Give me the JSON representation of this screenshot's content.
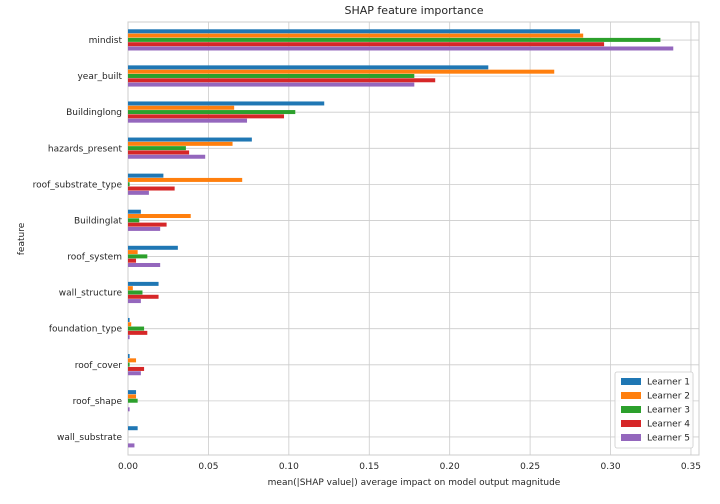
{
  "chart_data": {
    "type": "bar",
    "orientation": "horizontal",
    "title": "SHAP feature importance",
    "xlabel": "mean(|SHAP value|) average impact on model output magnitude",
    "ylabel": "feature",
    "xlim": [
      0,
      0.355
    ],
    "xticks": [
      "0.00",
      "0.05",
      "0.10",
      "0.15",
      "0.20",
      "0.25",
      "0.30",
      "0.35"
    ],
    "grid": true,
    "legend_position": "bottom-right",
    "categories": [
      "mindist",
      "year_built",
      "Buildinglong",
      "hazards_present",
      "roof_substrate_type",
      "Buildinglat",
      "roof_system",
      "wall_structure",
      "foundation_type",
      "roof_cover",
      "roof_shape",
      "wall_substrate"
    ],
    "series": [
      {
        "name": "Learner 1",
        "color": "#1f77b4",
        "values": [
          0.281,
          0.224,
          0.122,
          0.077,
          0.022,
          0.008,
          0.031,
          0.019,
          0.001,
          0.001,
          0.005,
          0.006
        ]
      },
      {
        "name": "Learner 2",
        "color": "#ff7f0e",
        "values": [
          0.283,
          0.265,
          0.066,
          0.065,
          0.071,
          0.039,
          0.006,
          0.003,
          0.002,
          0.005,
          0.005,
          0.0
        ]
      },
      {
        "name": "Learner 3",
        "color": "#2ca02c",
        "values": [
          0.331,
          0.178,
          0.104,
          0.036,
          0.001,
          0.007,
          0.012,
          0.009,
          0.01,
          0.001,
          0.006,
          0.0
        ]
      },
      {
        "name": "Learner 4",
        "color": "#d62728",
        "values": [
          0.296,
          0.191,
          0.097,
          0.038,
          0.029,
          0.024,
          0.005,
          0.019,
          0.012,
          0.01,
          0.0,
          0.0
        ]
      },
      {
        "name": "Learner 5",
        "color": "#9467bd",
        "values": [
          0.339,
          0.178,
          0.074,
          0.048,
          0.013,
          0.02,
          0.02,
          0.008,
          0.001,
          0.008,
          0.001,
          0.004
        ]
      }
    ]
  }
}
